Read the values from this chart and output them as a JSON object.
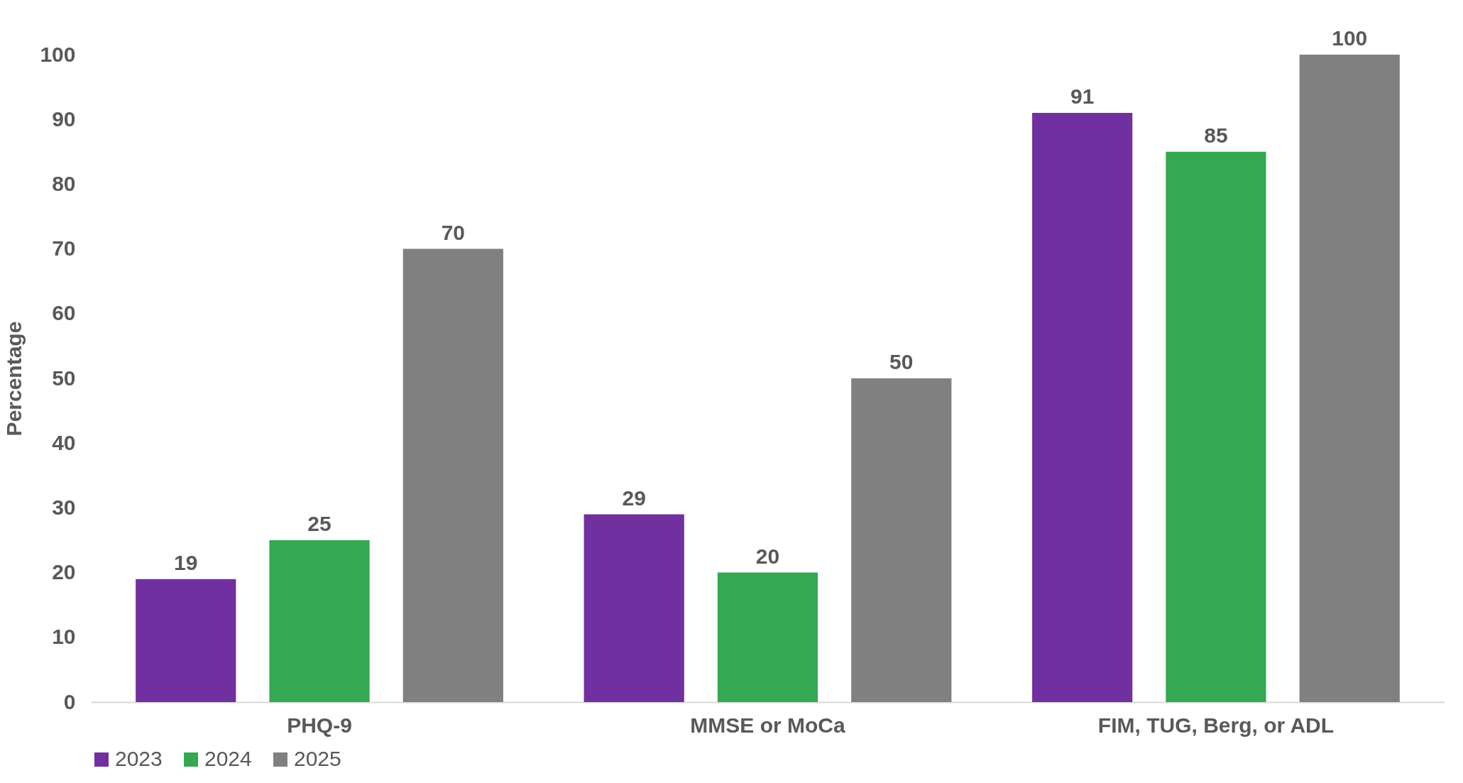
{
  "chart_data": {
    "type": "bar",
    "ylabel": "Percentage",
    "categories": [
      "PHQ-9",
      "MMSE or MoCa",
      "FIM, TUG, Berg, or ADL"
    ],
    "series": [
      {
        "name": "2023",
        "color": "#7030a0",
        "values": [
          19,
          29,
          91
        ]
      },
      {
        "name": "2024",
        "color": "#34a853",
        "values": [
          25,
          20,
          85
        ]
      },
      {
        "name": "2025",
        "color": "#808080",
        "values": [
          70,
          50,
          100
        ]
      }
    ],
    "ylim": [
      0,
      100
    ],
    "yticks": [
      0,
      10,
      20,
      30,
      40,
      50,
      60,
      70,
      80,
      90,
      100
    ],
    "grid": false,
    "legend": "bottom",
    "data_labels": true
  }
}
